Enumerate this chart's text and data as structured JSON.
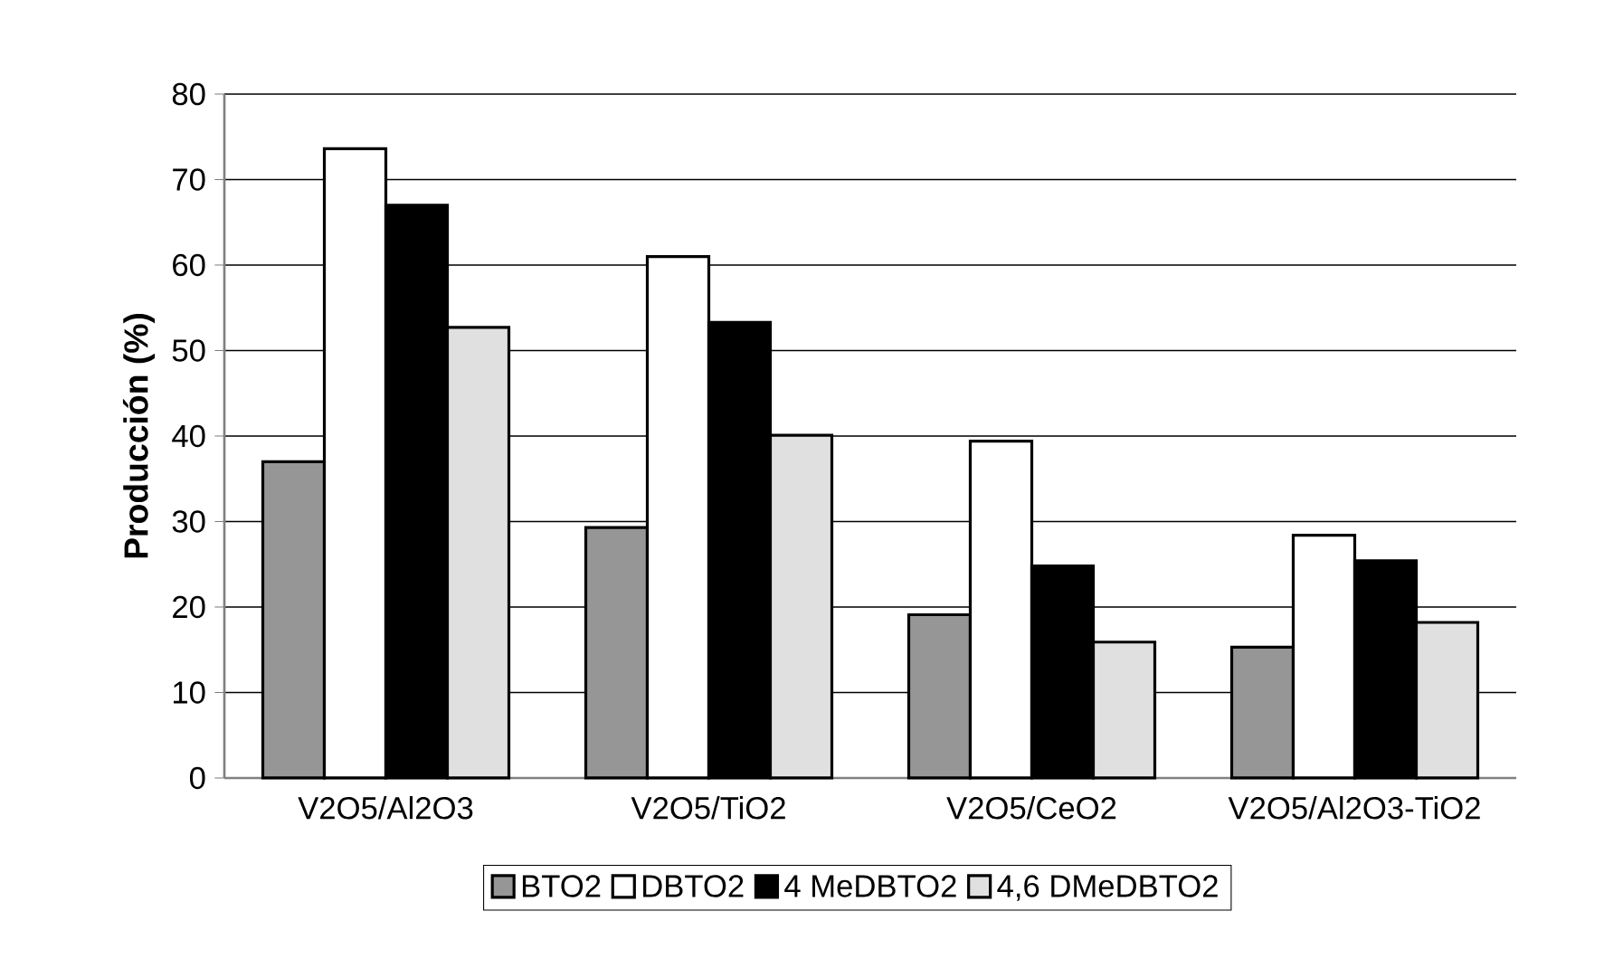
{
  "chart_data": {
    "type": "bar",
    "ylabel": "Producción (%)",
    "categories": [
      "V2O5/Al2O3",
      "V2O5/TiO2",
      "V2O5/CeO2",
      "V2O5/Al2O3-TiO2"
    ],
    "series": [
      {
        "name": "BTO2",
        "color": "#969696",
        "values": [
          37.0,
          29.3,
          19.1,
          15.3
        ]
      },
      {
        "name": "DBTO2",
        "color": "#ffffff",
        "values": [
          73.6,
          61.0,
          39.4,
          28.4
        ]
      },
      {
        "name": "4 MeDBTO2",
        "color": "#000000",
        "values": [
          67.0,
          53.3,
          24.8,
          25.4
        ]
      },
      {
        "name": "4,6 DMeDBTO2",
        "color": "#e0e0e0",
        "values": [
          52.7,
          40.1,
          15.9,
          18.2
        ]
      }
    ],
    "ylim": [
      0,
      80
    ],
    "yticks": [
      0,
      10,
      20,
      30,
      40,
      50,
      60,
      70,
      80
    ],
    "grid": "y",
    "legend": "bottom"
  }
}
